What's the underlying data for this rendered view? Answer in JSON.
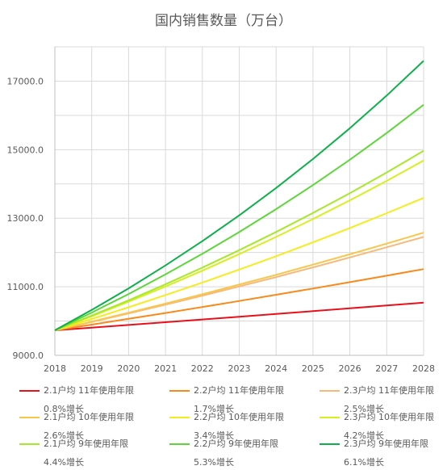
{
  "chart_data": {
    "type": "line",
    "title": "国内销售数量（万台）",
    "xlabel": "",
    "ylabel": "",
    "x": [
      "2018",
      "2019",
      "2020",
      "2021",
      "2022",
      "2023",
      "2024",
      "2025",
      "2026",
      "2027",
      "2028"
    ],
    "ylim": [
      9000,
      18000
    ],
    "yticks": [
      "9000.0",
      "11000.0",
      "13000.0",
      "15000.0",
      "17000.0"
    ],
    "grid": true,
    "legend_position": "bottom",
    "series": [
      {
        "name_line1": "2.1户均 11年使用年限",
        "name_line2": "0.8%增长",
        "color": "#e8111a",
        "values": [
          9730,
          9808,
          9886,
          9966,
          10045,
          10126,
          10207,
          10289,
          10371,
          10454,
          10537
        ]
      },
      {
        "name_line1": "2.2户均 11年使用年限",
        "name_line2": "1.7%增长",
        "color": "#f98a1a",
        "values": [
          9730,
          9895,
          10064,
          10235,
          10409,
          10586,
          10766,
          10949,
          11135,
          11324,
          11517
        ]
      },
      {
        "name_line1": "2.3户均 11年使用年限",
        "name_line2": "2.5%增长",
        "color": "#f7b97a",
        "values": [
          9730,
          9973,
          10223,
          10478,
          10740,
          11009,
          11284,
          11566,
          11855,
          12152,
          12455
        ]
      },
      {
        "name_line1": "2.1户均 10年使用年限",
        "name_line2": "2.6%增长",
        "color": "#f8c64a",
        "values": [
          9730,
          9983,
          10243,
          10509,
          10782,
          11063,
          11350,
          11645,
          11948,
          12259,
          12578
        ]
      },
      {
        "name_line1": "2.2户均 10年使用年限",
        "name_line2": "3.4%增长",
        "color": "#f4ec1e",
        "values": [
          9730,
          10061,
          10403,
          10757,
          11122,
          11501,
          11892,
          12296,
          12714,
          13146,
          13593
        ]
      },
      {
        "name_line1": "2.3户均 10年使用年限",
        "name_line2": "4.2%增长",
        "color": "#d7ef1f",
        "values": [
          9730,
          10139,
          10564,
          11008,
          11470,
          11952,
          12454,
          12977,
          13522,
          14090,
          14682
        ]
      },
      {
        "name_line1": "2.1户均 9年使用年限",
        "name_line2": "4.4%增长",
        "color": "#a7e82a",
        "values": [
          9730,
          10158,
          10605,
          11072,
          11559,
          12067,
          12598,
          13153,
          13731,
          14335,
          14966
        ]
      },
      {
        "name_line1": "2.2户均 9年使用年限",
        "name_line2": "5.3%增长",
        "color": "#5ed63b",
        "values": [
          9730,
          10246,
          10789,
          11360,
          11962,
          12596,
          13264,
          13967,
          14707,
          15487,
          16308
        ]
      },
      {
        "name_line1": "2.3户均 9年使用年限",
        "name_line2": "6.1%增长",
        "color": "#0eb04b",
        "values": [
          9730,
          10324,
          10953,
          11622,
          12331,
          13083,
          13881,
          14728,
          15626,
          16579,
          17590
        ]
      }
    ]
  }
}
